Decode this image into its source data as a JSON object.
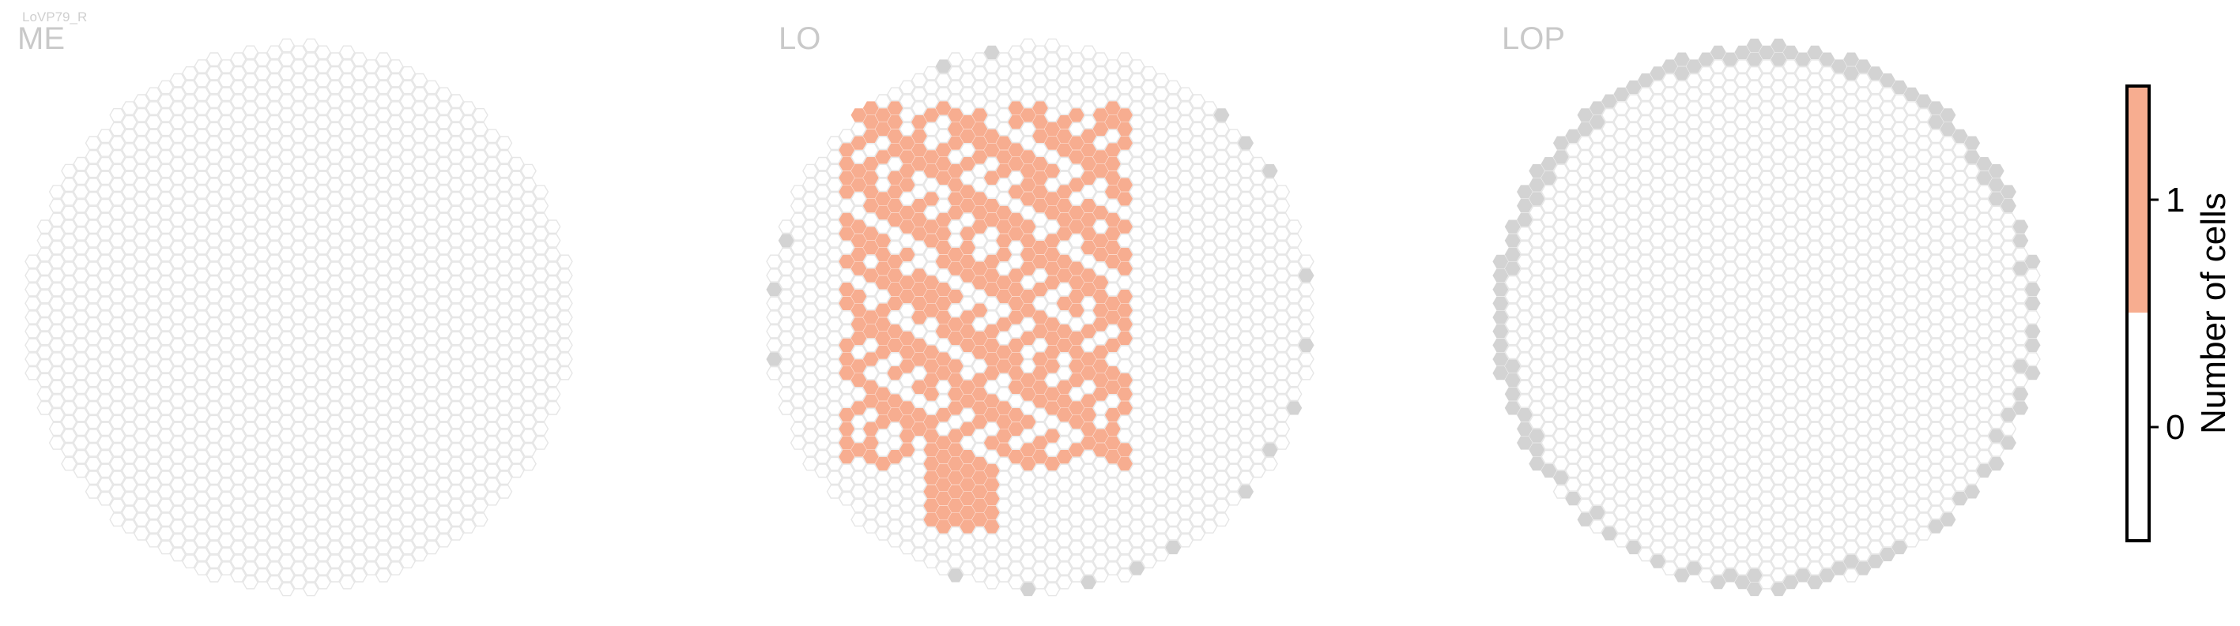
{
  "cell_type": "LoVP79_R",
  "chart_data": {
    "type": "heatmap",
    "layout": "hexagonal columns",
    "panels": [
      {
        "name": "ME",
        "filled_cells": [],
        "edge_marker_count": 0
      },
      {
        "name": "LO",
        "filled_cells": "about 140 columns, Number of cells = 1",
        "edge_marker_count": 22
      },
      {
        "name": "LOP",
        "filled_cells": [],
        "edge_marker_count": 64
      }
    ],
    "colorbar": {
      "label": "Number of cells",
      "ticks": [
        0,
        1
      ],
      "tick_labels": [
        "0",
        "1"
      ],
      "range": [
        -0.5,
        1.5
      ],
      "colors": {
        "0": "#ffffff",
        "1": "#f7ad90"
      }
    },
    "colors": {
      "empty_outline": "#e6e6e6",
      "edge_column": "#d3d3d3",
      "count_1": "#f7ad90"
    }
  }
}
